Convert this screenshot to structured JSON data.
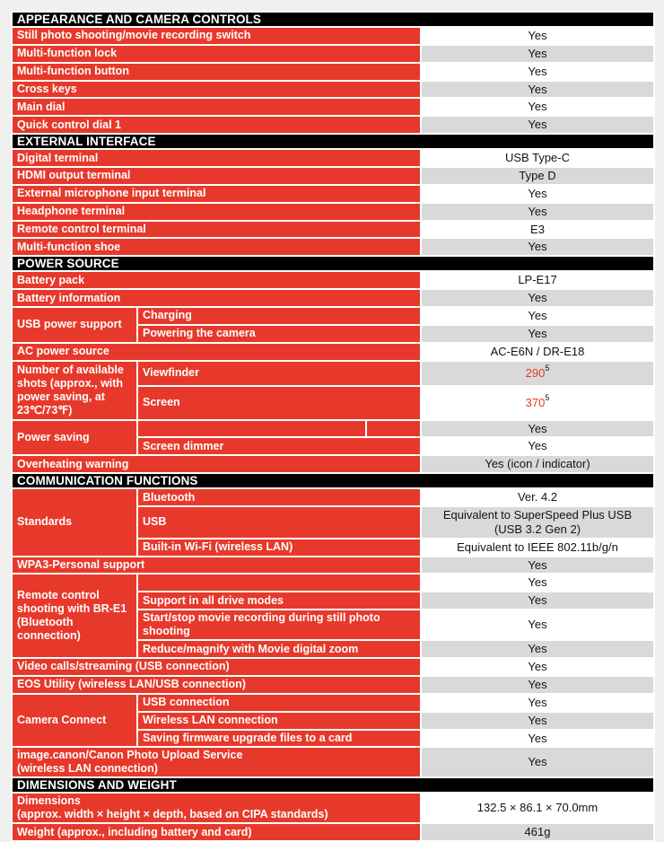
{
  "page": {
    "kind": "camera-specification-sheet",
    "background": "#f0f0f1"
  },
  "colors": {
    "section_header_bg": "#000000",
    "section_header_fg": "#ffffff",
    "label_bg": "#e7392b",
    "label_fg": "#ffffff",
    "value_row_bg": "#ffffff",
    "value_row_alt_bg": "#d9d9d9",
    "value_fg": "#131313",
    "highlight_value_fg": "#e7392b",
    "grid_line": "#ffffff"
  },
  "table": {
    "sections": [
      {
        "title": "APPEARANCE AND CAMERA CONTROLS",
        "rows": [
          {
            "label": "Still photo shooting/movie recording switch",
            "value": "Yes"
          },
          {
            "label": "Multi-function lock",
            "value": "Yes"
          },
          {
            "label": "Multi-function button",
            "value": "Yes"
          },
          {
            "label": "Cross keys",
            "value": "Yes"
          },
          {
            "label": "Main dial",
            "value": "Yes"
          },
          {
            "label": "Quick control dial 1",
            "value": "Yes"
          }
        ]
      },
      {
        "title": "EXTERNAL INTERFACE",
        "rows": [
          {
            "label": "Digital terminal",
            "value": "USB Type-C"
          },
          {
            "label": "HDMI output terminal",
            "value": "Type D"
          },
          {
            "label": "External microphone input terminal",
            "value": "Yes"
          },
          {
            "label": "Headphone terminal",
            "value": "Yes"
          },
          {
            "label": "Remote control terminal",
            "value": "E3"
          },
          {
            "label": "Multi-function shoe",
            "value": "Yes"
          }
        ]
      },
      {
        "title": "POWER SOURCE",
        "rows": [
          {
            "label": "Battery pack",
            "value": "LP-E17"
          },
          {
            "label": "Battery information",
            "value": "Yes"
          },
          {
            "label": "USB power support",
            "rowspan": 2,
            "sub": "Charging",
            "value": "Yes"
          },
          {
            "sub": "Powering the camera",
            "value": "Yes"
          },
          {
            "label": "AC power source",
            "value": "AC-E6N / DR-E18"
          },
          {
            "label": "Number of available shots (approx., with power saving, at 23℃/73℉)",
            "rowspan": 2,
            "sub": "Viewfinder",
            "value": "290",
            "value_sup": "5",
            "value_red": true,
            "h": 28
          },
          {
            "sub": "Screen",
            "value": "370",
            "value_sup": "5",
            "value_red": true,
            "h": 38
          },
          {
            "label": "Power saving",
            "rowspan": 2,
            "sub": "",
            "sub_split": true,
            "value": "Yes"
          },
          {
            "sub": "Screen dimmer",
            "value": "Yes"
          },
          {
            "label": "Overheating warning",
            "value": "Yes (icon / indicator)"
          }
        ]
      },
      {
        "title": "COMMUNICATION FUNCTIONS",
        "rows": [
          {
            "label": "Standards",
            "rowspan": 3,
            "sub": "Bluetooth",
            "value": "Ver. 4.2"
          },
          {
            "sub": "USB",
            "value": "Equivalent to SuperSpeed Plus USB (USB 3.2 Gen 2)"
          },
          {
            "sub": "Built-in Wi-Fi (wireless LAN)",
            "value": "Equivalent to IEEE 802.11b/g/n"
          },
          {
            "label": "WPA3-Personal support",
            "value": "Yes"
          },
          {
            "label": "Remote control shooting with BR-E1 (Bluetooth connection)",
            "rowspan": 4,
            "sub": "",
            "value": "Yes"
          },
          {
            "sub": "Support in all drive modes",
            "value": "Yes"
          },
          {
            "sub": "Start/stop movie recording during still photo shooting",
            "value": "Yes"
          },
          {
            "sub": "Reduce/magnify with Movie digital zoom",
            "value": "Yes"
          },
          {
            "label": "Video calls/streaming (USB connection)",
            "value": "Yes"
          },
          {
            "label": "EOS Utility (wireless LAN/USB connection)",
            "value": "Yes"
          },
          {
            "label": "Camera Connect",
            "rowspan": 3,
            "sub": "USB connection",
            "value": "Yes"
          },
          {
            "sub": "Wireless LAN connection",
            "value": "Yes"
          },
          {
            "sub": "Saving firmware upgrade files to a card",
            "value": "Yes"
          },
          {
            "label": "image.canon/Canon Photo Upload Service\n(wireless LAN connection)",
            "value": "Yes"
          }
        ]
      },
      {
        "title": "DIMENSIONS AND WEIGHT",
        "rows": [
          {
            "label": "Dimensions\n(approx. width × height × depth, based on CIPA standards)",
            "value": "132.5 × 86.1 × 70.0mm"
          },
          {
            "label": "Weight (approx., including battery and card)",
            "value": "461g"
          }
        ]
      }
    ]
  }
}
